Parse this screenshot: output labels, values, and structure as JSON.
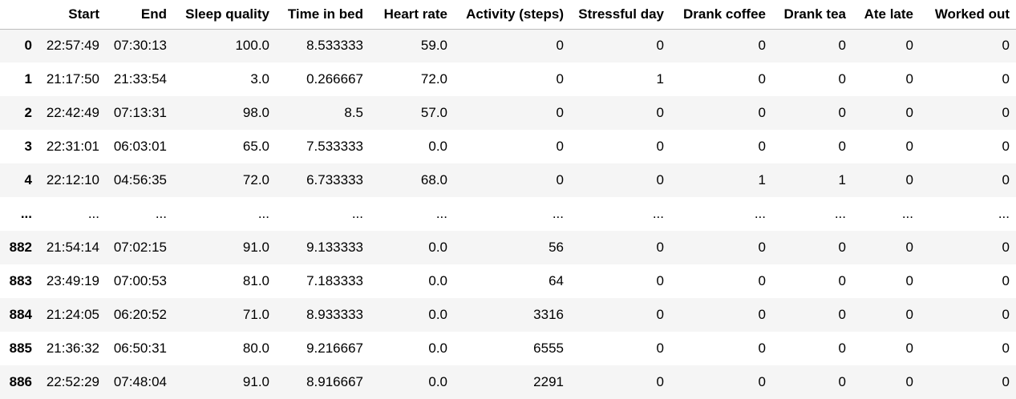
{
  "columns": [
    "",
    "Start",
    "End",
    "Sleep quality",
    "Time in bed",
    "Heart rate",
    "Activity (steps)",
    "Stressful day",
    "Drank coffee",
    "Drank tea",
    "Ate late",
    "Worked out"
  ],
  "rows": [
    [
      "0",
      "22:57:49",
      "07:30:13",
      "100.0",
      "8.533333",
      "59.0",
      "0",
      "0",
      "0",
      "0",
      "0",
      "0"
    ],
    [
      "1",
      "21:17:50",
      "21:33:54",
      "3.0",
      "0.266667",
      "72.0",
      "0",
      "1",
      "0",
      "0",
      "0",
      "0"
    ],
    [
      "2",
      "22:42:49",
      "07:13:31",
      "98.0",
      "8.5",
      "57.0",
      "0",
      "0",
      "0",
      "0",
      "0",
      "0"
    ],
    [
      "3",
      "22:31:01",
      "06:03:01",
      "65.0",
      "7.533333",
      "0.0",
      "0",
      "0",
      "0",
      "0",
      "0",
      "0"
    ],
    [
      "4",
      "22:12:10",
      "04:56:35",
      "72.0",
      "6.733333",
      "68.0",
      "0",
      "0",
      "1",
      "1",
      "0",
      "0"
    ],
    [
      "...",
      "...",
      "...",
      "...",
      "...",
      "...",
      "...",
      "...",
      "...",
      "...",
      "...",
      "..."
    ],
    [
      "882",
      "21:54:14",
      "07:02:15",
      "91.0",
      "9.133333",
      "0.0",
      "56",
      "0",
      "0",
      "0",
      "0",
      "0"
    ],
    [
      "883",
      "23:49:19",
      "07:00:53",
      "81.0",
      "7.183333",
      "0.0",
      "64",
      "0",
      "0",
      "0",
      "0",
      "0"
    ],
    [
      "884",
      "21:24:05",
      "06:20:52",
      "71.0",
      "8.933333",
      "0.0",
      "3316",
      "0",
      "0",
      "0",
      "0",
      "0"
    ],
    [
      "885",
      "21:36:32",
      "06:50:31",
      "80.0",
      "9.216667",
      "0.0",
      "6555",
      "0",
      "0",
      "0",
      "0",
      "0"
    ],
    [
      "886",
      "22:52:29",
      "07:48:04",
      "91.0",
      "8.916667",
      "0.0",
      "2291",
      "0",
      "0",
      "0",
      "0",
      "0"
    ]
  ]
}
